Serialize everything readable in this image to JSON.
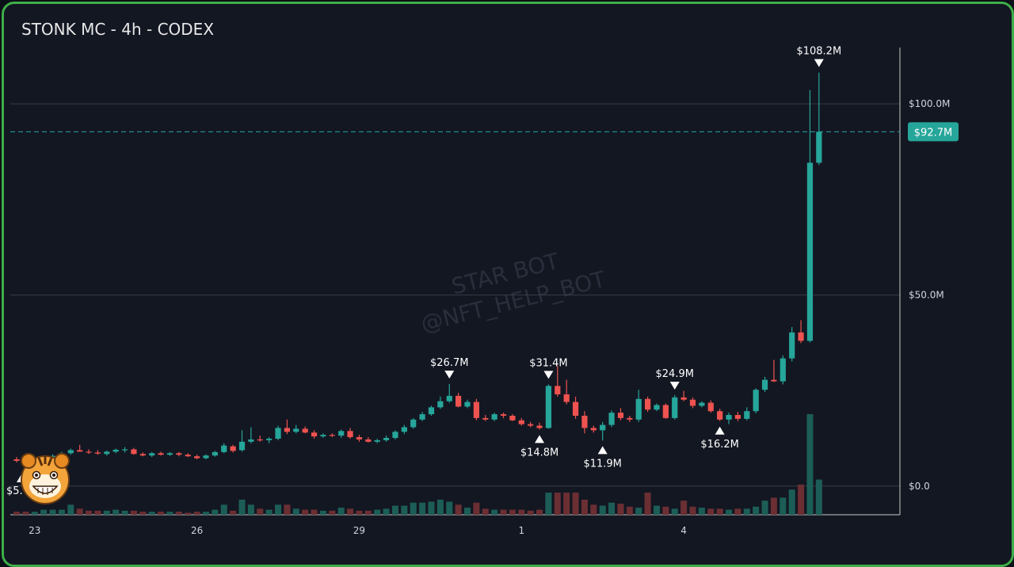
{
  "title": "STONK MC - 4h - CODEX",
  "watermark": [
    "STAR BOT",
    "@NFT_HELP_BOT"
  ],
  "colors": {
    "up": "#26a69a",
    "down": "#ef5350",
    "grid": "#2a2e39",
    "bg": "#131722",
    "border": "#3fae48",
    "badge": "#26a69a"
  },
  "avatar_icon": "tiger-face-icon",
  "chart_data": {
    "type": "candlestick",
    "interval": "4h",
    "y_unit": "USD market cap (millions)",
    "ylim": [
      -7.5,
      122
    ],
    "y_ticks": [
      {
        "value": 0,
        "label": "$0.0"
      },
      {
        "value": 50,
        "label": "$50.0M"
      },
      {
        "value": 100,
        "label": "$100.0M"
      }
    ],
    "x_ticks": [
      {
        "index": 2,
        "label": "23"
      },
      {
        "index": 20,
        "label": "26"
      },
      {
        "index": 38,
        "label": "29"
      },
      {
        "index": 56,
        "label": "1"
      },
      {
        "index": 74,
        "label": "4"
      }
    ],
    "current_price": {
      "value": 92.7,
      "label": "$92.7M"
    },
    "candles": [
      {
        "o": 7.0,
        "h": 7.6,
        "l": 6.2,
        "c": 6.6
      },
      {
        "o": 6.6,
        "h": 7.2,
        "l": 6.0,
        "c": 6.4
      },
      {
        "o": 6.3,
        "h": 7.4,
        "l": 5.8,
        "c": 6.9
      },
      {
        "o": 6.9,
        "h": 8.0,
        "l": 6.6,
        "c": 7.6
      },
      {
        "o": 7.6,
        "h": 8.3,
        "l": 7.2,
        "c": 7.9
      },
      {
        "o": 7.9,
        "h": 9.0,
        "l": 7.5,
        "c": 8.6
      },
      {
        "o": 8.6,
        "h": 9.8,
        "l": 8.2,
        "c": 9.4
      },
      {
        "o": 9.4,
        "h": 10.8,
        "l": 9.0,
        "c": 9.0
      },
      {
        "o": 9.0,
        "h": 9.6,
        "l": 8.4,
        "c": 8.8
      },
      {
        "o": 8.8,
        "h": 9.4,
        "l": 8.2,
        "c": 8.5
      },
      {
        "o": 8.4,
        "h": 9.3,
        "l": 8.0,
        "c": 9.0
      },
      {
        "o": 9.0,
        "h": 9.8,
        "l": 8.6,
        "c": 9.5
      },
      {
        "o": 9.4,
        "h": 10.2,
        "l": 8.8,
        "c": 9.6
      },
      {
        "o": 9.6,
        "h": 10.0,
        "l": 8.2,
        "c": 8.4
      },
      {
        "o": 8.4,
        "h": 8.8,
        "l": 7.8,
        "c": 8.0
      },
      {
        "o": 8.0,
        "h": 8.9,
        "l": 7.6,
        "c": 8.6
      },
      {
        "o": 8.6,
        "h": 9.0,
        "l": 8.0,
        "c": 8.2
      },
      {
        "o": 8.2,
        "h": 8.9,
        "l": 7.9,
        "c": 8.6
      },
      {
        "o": 8.6,
        "h": 8.9,
        "l": 7.8,
        "c": 8.2
      },
      {
        "o": 8.2,
        "h": 8.6,
        "l": 7.6,
        "c": 7.8
      },
      {
        "o": 7.8,
        "h": 8.2,
        "l": 7.0,
        "c": 7.3
      },
      {
        "o": 7.3,
        "h": 8.3,
        "l": 7.0,
        "c": 8.0
      },
      {
        "o": 8.0,
        "h": 9.2,
        "l": 7.7,
        "c": 8.9
      },
      {
        "o": 8.9,
        "h": 11.2,
        "l": 8.6,
        "c": 10.6
      },
      {
        "o": 10.4,
        "h": 10.8,
        "l": 8.8,
        "c": 9.2
      },
      {
        "o": 9.4,
        "h": 14.6,
        "l": 9.0,
        "c": 11.6
      },
      {
        "o": 11.6,
        "h": 15.4,
        "l": 11.2,
        "c": 12.2
      },
      {
        "o": 12.2,
        "h": 13.2,
        "l": 11.6,
        "c": 12.0
      },
      {
        "o": 12.0,
        "h": 12.8,
        "l": 11.2,
        "c": 12.4
      },
      {
        "o": 12.4,
        "h": 15.8,
        "l": 12.0,
        "c": 15.2
      },
      {
        "o": 15.2,
        "h": 17.4,
        "l": 13.6,
        "c": 14.2
      },
      {
        "o": 14.2,
        "h": 16.0,
        "l": 13.8,
        "c": 15.0
      },
      {
        "o": 15.0,
        "h": 15.6,
        "l": 13.8,
        "c": 14.0
      },
      {
        "o": 14.0,
        "h": 14.6,
        "l": 12.4,
        "c": 13.0
      },
      {
        "o": 13.0,
        "h": 13.8,
        "l": 12.6,
        "c": 13.4
      },
      {
        "o": 13.4,
        "h": 13.8,
        "l": 12.8,
        "c": 13.2
      },
      {
        "o": 13.2,
        "h": 14.8,
        "l": 12.6,
        "c": 14.4
      },
      {
        "o": 14.4,
        "h": 15.2,
        "l": 12.4,
        "c": 12.8
      },
      {
        "o": 12.8,
        "h": 13.4,
        "l": 11.6,
        "c": 12.2
      },
      {
        "o": 12.2,
        "h": 12.8,
        "l": 11.4,
        "c": 11.6
      },
      {
        "o": 11.6,
        "h": 12.4,
        "l": 11.2,
        "c": 12.0
      },
      {
        "o": 12.0,
        "h": 13.2,
        "l": 11.6,
        "c": 12.6
      },
      {
        "o": 12.6,
        "h": 14.6,
        "l": 12.2,
        "c": 14.2
      },
      {
        "o": 14.2,
        "h": 16.0,
        "l": 13.6,
        "c": 15.4
      },
      {
        "o": 15.4,
        "h": 17.8,
        "l": 15.0,
        "c": 17.4
      },
      {
        "o": 17.4,
        "h": 19.4,
        "l": 17.0,
        "c": 18.8
      },
      {
        "o": 18.8,
        "h": 21.0,
        "l": 18.4,
        "c": 20.6
      },
      {
        "o": 20.6,
        "h": 23.4,
        "l": 20.2,
        "c": 22.2
      },
      {
        "o": 22.2,
        "h": 26.7,
        "l": 21.8,
        "c": 23.6
      },
      {
        "o": 23.6,
        "h": 24.4,
        "l": 20.6,
        "c": 20.8
      },
      {
        "o": 20.8,
        "h": 22.6,
        "l": 20.4,
        "c": 22.0
      },
      {
        "o": 22.0,
        "h": 22.8,
        "l": 17.2,
        "c": 17.8
      },
      {
        "o": 17.8,
        "h": 18.6,
        "l": 17.0,
        "c": 17.4
      },
      {
        "o": 17.4,
        "h": 19.2,
        "l": 17.0,
        "c": 18.8
      },
      {
        "o": 18.8,
        "h": 19.2,
        "l": 17.8,
        "c": 18.4
      },
      {
        "o": 18.4,
        "h": 18.8,
        "l": 17.0,
        "c": 17.2
      },
      {
        "o": 17.2,
        "h": 17.8,
        "l": 15.8,
        "c": 16.2
      },
      {
        "o": 16.2,
        "h": 16.8,
        "l": 15.4,
        "c": 15.8
      },
      {
        "o": 15.8,
        "h": 16.6,
        "l": 14.8,
        "c": 15.2
      },
      {
        "o": 15.2,
        "h": 26.6,
        "l": 15.0,
        "c": 26.2
      },
      {
        "o": 26.2,
        "h": 31.4,
        "l": 23.4,
        "c": 24.0
      },
      {
        "o": 24.0,
        "h": 27.8,
        "l": 21.4,
        "c": 22.0
      },
      {
        "o": 22.0,
        "h": 23.4,
        "l": 17.6,
        "c": 18.4
      },
      {
        "o": 18.4,
        "h": 19.6,
        "l": 13.8,
        "c": 15.2
      },
      {
        "o": 15.2,
        "h": 15.8,
        "l": 14.0,
        "c": 14.6
      },
      {
        "o": 14.6,
        "h": 16.8,
        "l": 11.9,
        "c": 16.0
      },
      {
        "o": 16.0,
        "h": 19.8,
        "l": 15.4,
        "c": 19.2
      },
      {
        "o": 19.2,
        "h": 20.4,
        "l": 17.2,
        "c": 17.8
      },
      {
        "o": 17.8,
        "h": 18.4,
        "l": 16.8,
        "c": 17.4
      },
      {
        "o": 17.4,
        "h": 25.2,
        "l": 16.8,
        "c": 22.8
      },
      {
        "o": 22.8,
        "h": 23.4,
        "l": 19.4,
        "c": 20.0
      },
      {
        "o": 20.0,
        "h": 21.6,
        "l": 19.6,
        "c": 21.2
      },
      {
        "o": 21.2,
        "h": 21.6,
        "l": 17.6,
        "c": 17.8
      },
      {
        "o": 17.8,
        "h": 23.8,
        "l": 17.4,
        "c": 23.2
      },
      {
        "o": 23.2,
        "h": 24.9,
        "l": 22.2,
        "c": 22.6
      },
      {
        "o": 22.6,
        "h": 23.2,
        "l": 20.4,
        "c": 21.0
      },
      {
        "o": 21.0,
        "h": 22.2,
        "l": 20.6,
        "c": 21.8
      },
      {
        "o": 21.8,
        "h": 22.4,
        "l": 19.2,
        "c": 19.6
      },
      {
        "o": 19.6,
        "h": 20.2,
        "l": 17.0,
        "c": 17.4
      },
      {
        "o": 17.4,
        "h": 19.2,
        "l": 16.2,
        "c": 18.6
      },
      {
        "o": 18.6,
        "h": 19.4,
        "l": 17.0,
        "c": 17.6
      },
      {
        "o": 17.6,
        "h": 20.6,
        "l": 17.2,
        "c": 19.6
      },
      {
        "o": 19.6,
        "h": 25.6,
        "l": 19.0,
        "c": 25.2
      },
      {
        "o": 25.2,
        "h": 28.6,
        "l": 24.6,
        "c": 27.8
      },
      {
        "o": 27.8,
        "h": 33.0,
        "l": 27.2,
        "c": 27.4
      },
      {
        "o": 27.4,
        "h": 34.2,
        "l": 26.6,
        "c": 33.4
      },
      {
        "o": 33.4,
        "h": 41.6,
        "l": 32.6,
        "c": 40.2
      },
      {
        "o": 40.2,
        "h": 43.4,
        "l": 37.4,
        "c": 38.0
      },
      {
        "o": 38.0,
        "h": 103.6,
        "l": 37.6,
        "c": 84.6
      },
      {
        "o": 84.6,
        "h": 108.2,
        "l": 84.0,
        "c": 92.7
      }
    ],
    "volume_ratios": [
      0.03,
      0.03,
      0.03,
      0.05,
      0.05,
      0.05,
      0.1,
      0.06,
      0.04,
      0.04,
      0.04,
      0.05,
      0.04,
      0.04,
      0.03,
      0.03,
      0.03,
      0.03,
      0.03,
      0.02,
      0.03,
      0.03,
      0.05,
      0.1,
      0.04,
      0.15,
      0.1,
      0.06,
      0.05,
      0.1,
      0.1,
      0.06,
      0.05,
      0.05,
      0.04,
      0.04,
      0.07,
      0.06,
      0.04,
      0.04,
      0.05,
      0.06,
      0.09,
      0.09,
      0.12,
      0.12,
      0.13,
      0.15,
      0.13,
      0.1,
      0.07,
      0.12,
      0.06,
      0.05,
      0.05,
      0.05,
      0.05,
      0.04,
      0.05,
      0.22,
      0.22,
      0.22,
      0.22,
      0.15,
      0.1,
      0.09,
      0.12,
      0.11,
      0.08,
      0.07,
      0.22,
      0.09,
      0.08,
      0.06,
      0.14,
      0.08,
      0.07,
      0.06,
      0.06,
      0.05,
      0.06,
      0.06,
      0.08,
      0.14,
      0.17,
      0.17,
      0.25,
      0.3,
      1.0,
      0.35
    ],
    "annotations": [
      {
        "index": 48,
        "label": "$26.7M",
        "pos": "above"
      },
      {
        "index": 59,
        "label": "$31.4M",
        "pos": "above"
      },
      {
        "index": 58,
        "label": "$14.8M",
        "pos": "below"
      },
      {
        "index": 65,
        "label": "$11.9M",
        "pos": "below"
      },
      {
        "index": 73,
        "label": "$24.9M",
        "pos": "above"
      },
      {
        "index": 78,
        "label": "$16.2M",
        "pos": "below"
      },
      {
        "index": 89,
        "label": "$108.2M",
        "pos": "above"
      }
    ],
    "partial_label": "$5."
  }
}
